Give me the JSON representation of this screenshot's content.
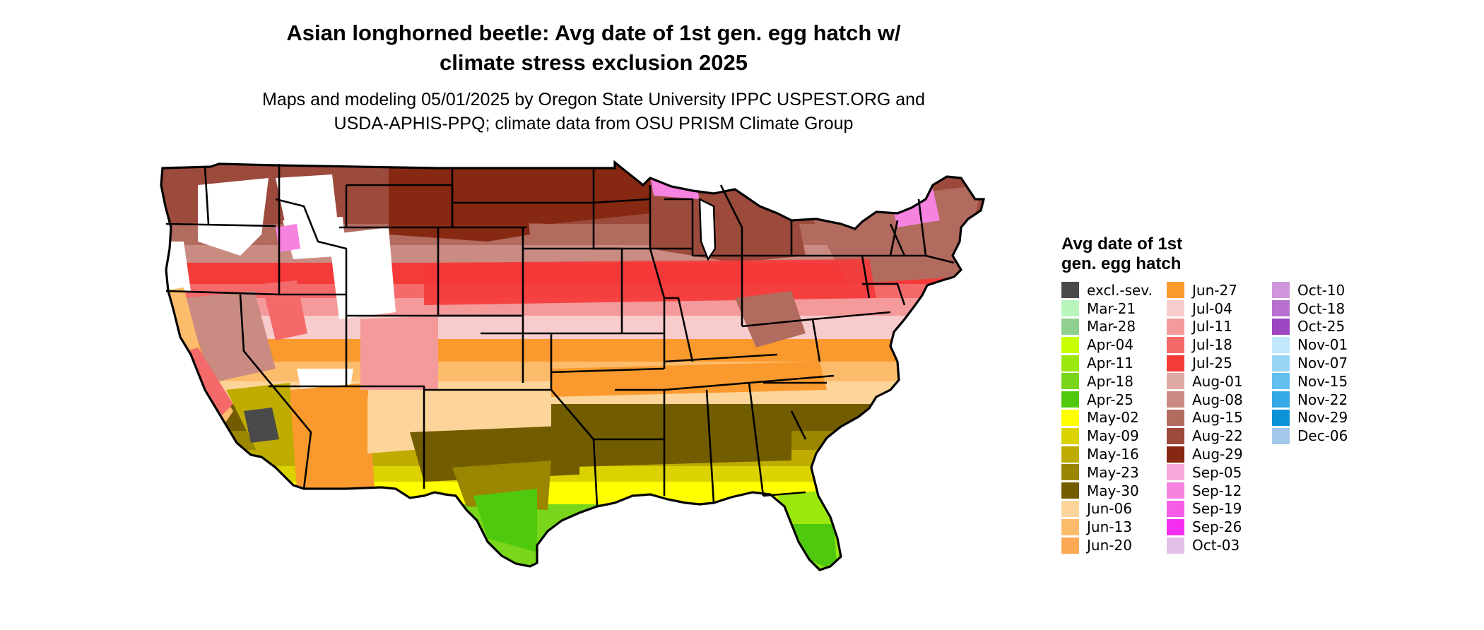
{
  "title": {
    "line1": "Asian longhorned beetle: Avg date of 1st gen. egg hatch w/",
    "line2": "climate stress exclusion 2025"
  },
  "subtitle": {
    "line1": "Maps and modeling 05/01/2025 by Oregon State University IPPC USPEST.ORG and",
    "line2": "USDA-APHIS-PPQ; climate data from OSU PRISM Climate Group"
  },
  "legend": {
    "title_line1": "Avg date of 1st",
    "title_line2": "gen. egg hatch",
    "columns": [
      [
        {
          "label": "excl.-sev.",
          "color": "#4a4a4a"
        },
        {
          "label": "Mar-21",
          "color": "#b9f5bd"
        },
        {
          "label": "Mar-28",
          "color": "#8fcf8f"
        },
        {
          "label": "Apr-04",
          "color": "#c6ff00"
        },
        {
          "label": "Apr-11",
          "color": "#9be80f"
        },
        {
          "label": "Apr-18",
          "color": "#79d61a"
        },
        {
          "label": "Apr-25",
          "color": "#4fc90e"
        },
        {
          "label": "May-02",
          "color": "#ffff00"
        },
        {
          "label": "May-09",
          "color": "#dcd200"
        },
        {
          "label": "May-16",
          "color": "#bfac00"
        },
        {
          "label": "May-23",
          "color": "#9a8600"
        },
        {
          "label": "May-30",
          "color": "#725c00"
        },
        {
          "label": "Jun-06",
          "color": "#fdd59b"
        },
        {
          "label": "Jun-13",
          "color": "#fdbc6c"
        },
        {
          "label": "Jun-20",
          "color": "#fcaa55"
        }
      ],
      [
        {
          "label": "Jun-27",
          "color": "#fa9a2e"
        },
        {
          "label": "Jul-04",
          "color": "#f8cccc"
        },
        {
          "label": "Jul-11",
          "color": "#f49a9a"
        },
        {
          "label": "Jul-18",
          "color": "#f46a6a"
        },
        {
          "label": "Jul-25",
          "color": "#f53a3a"
        },
        {
          "label": "Aug-01",
          "color": "#dfaaa5"
        },
        {
          "label": "Aug-08",
          "color": "#c98b82"
        },
        {
          "label": "Aug-15",
          "color": "#b26b5f"
        },
        {
          "label": "Aug-22",
          "color": "#9b4a3c"
        },
        {
          "label": "Aug-29",
          "color": "#862812"
        },
        {
          "label": "Sep-05",
          "color": "#f8a9dd"
        },
        {
          "label": "Sep-12",
          "color": "#f683e0"
        },
        {
          "label": "Sep-19",
          "color": "#f55de6"
        },
        {
          "label": "Sep-26",
          "color": "#f52df0"
        },
        {
          "label": "Oct-03",
          "color": "#e3c0e8"
        }
      ],
      [
        {
          "label": "Oct-10",
          "color": "#cf96dc"
        },
        {
          "label": "Oct-18",
          "color": "#b870d0"
        },
        {
          "label": "Oct-25",
          "color": "#9e46c2"
        },
        {
          "label": "Nov-01",
          "color": "#bfe9fb"
        },
        {
          "label": "Nov-07",
          "color": "#96d5f5"
        },
        {
          "label": "Nov-15",
          "color": "#62bfee"
        },
        {
          "label": "Nov-22",
          "color": "#35a9e6"
        },
        {
          "label": "Nov-29",
          "color": "#0c93d6"
        },
        {
          "label": "Dec-06",
          "color": "#a4c8ec"
        }
      ]
    ]
  }
}
